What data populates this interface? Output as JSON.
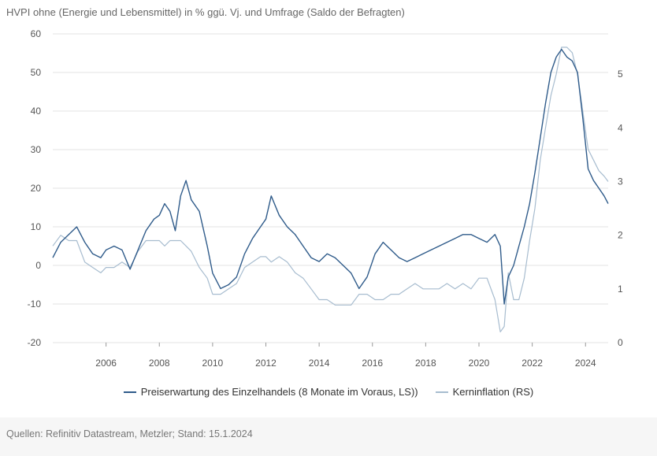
{
  "chart_data": {
    "type": "line",
    "title": "HVPI ohne (Energie und Lebensmittel) in % ggü. Vj. und Umfrage (Saldo der Befragten)",
    "x_ticks": [
      "2006",
      "2008",
      "2010",
      "2012",
      "2014",
      "2016",
      "2018",
      "2020",
      "2022",
      "2024"
    ],
    "x_tick_values": [
      2006,
      2008,
      2010,
      2012,
      2014,
      2016,
      2018,
      2020,
      2022,
      2024
    ],
    "xlim": [
      2004.0,
      2024.85
    ],
    "left_axis": {
      "ylim": [
        -20,
        60
      ],
      "ticks": [
        "60",
        "50",
        "40",
        "30",
        "20",
        "10",
        "0",
        "-10",
        "-20"
      ],
      "tick_values": [
        60,
        50,
        40,
        30,
        20,
        10,
        0,
        -10,
        -20
      ]
    },
    "right_axis": {
      "ylim": [
        0,
        5.75
      ],
      "ticks": [
        "5",
        "4",
        "3",
        "2",
        "1",
        "0"
      ],
      "tick_values": [
        5,
        4,
        3,
        2,
        1,
        0
      ]
    },
    "grid": true,
    "series": [
      {
        "name": "Preiserwartung des Einzelhandels (8 Monate im Voraus, LS))",
        "axis": "left",
        "color": "#2f5b8a",
        "x": [
          2004.0,
          2004.3,
          2004.6,
          2004.9,
          2005.2,
          2005.5,
          2005.8,
          2006.0,
          2006.3,
          2006.6,
          2006.9,
          2007.2,
          2007.5,
          2007.8,
          2008.0,
          2008.2,
          2008.4,
          2008.6,
          2008.8,
          2009.0,
          2009.2,
          2009.5,
          2009.8,
          2010.0,
          2010.3,
          2010.6,
          2010.9,
          2011.2,
          2011.5,
          2011.8,
          2012.0,
          2012.2,
          2012.5,
          2012.8,
          2013.1,
          2013.4,
          2013.7,
          2014.0,
          2014.3,
          2014.6,
          2014.9,
          2015.2,
          2015.5,
          2015.8,
          2016.1,
          2016.4,
          2016.7,
          2017.0,
          2017.3,
          2017.6,
          2017.9,
          2018.2,
          2018.5,
          2018.8,
          2019.1,
          2019.4,
          2019.7,
          2020.0,
          2020.3,
          2020.6,
          2020.8,
          2020.95,
          2021.1,
          2021.3,
          2021.5,
          2021.7,
          2021.9,
          2022.1,
          2022.3,
          2022.5,
          2022.7,
          2022.9,
          2023.1,
          2023.3,
          2023.5,
          2023.7,
          2023.9,
          2024.1,
          2024.3,
          2024.5,
          2024.7,
          2024.85
        ],
        "values": [
          2,
          6,
          8,
          10,
          6,
          3,
          2,
          4,
          5,
          4,
          -1,
          4,
          9,
          12,
          13,
          16,
          14,
          9,
          18,
          22,
          17,
          14,
          5,
          -2,
          -6,
          -5,
          -3,
          3,
          7,
          10,
          12,
          18,
          13,
          10,
          8,
          5,
          2,
          1,
          3,
          2,
          0,
          -2,
          -6,
          -3,
          3,
          6,
          4,
          2,
          1,
          2,
          3,
          4,
          5,
          6,
          7,
          8,
          8,
          7,
          6,
          8,
          5,
          -10,
          -3,
          0,
          5,
          10,
          16,
          24,
          33,
          42,
          50,
          54,
          56,
          54,
          53,
          50,
          38,
          25,
          22,
          20,
          18,
          16
        ]
      },
      {
        "name": "Kerninflation (RS)",
        "axis": "right",
        "color": "#a7bccf",
        "x": [
          2004.0,
          2004.3,
          2004.6,
          2004.9,
          2005.2,
          2005.5,
          2005.8,
          2006.0,
          2006.3,
          2006.6,
          2006.9,
          2007.2,
          2007.5,
          2007.8,
          2008.0,
          2008.2,
          2008.4,
          2008.6,
          2008.8,
          2009.0,
          2009.2,
          2009.5,
          2009.8,
          2010.0,
          2010.3,
          2010.6,
          2010.9,
          2011.2,
          2011.5,
          2011.8,
          2012.0,
          2012.2,
          2012.5,
          2012.8,
          2013.1,
          2013.4,
          2013.7,
          2014.0,
          2014.3,
          2014.6,
          2014.9,
          2015.2,
          2015.5,
          2015.8,
          2016.1,
          2016.4,
          2016.7,
          2017.0,
          2017.3,
          2017.6,
          2017.9,
          2018.2,
          2018.5,
          2018.8,
          2019.1,
          2019.4,
          2019.7,
          2020.0,
          2020.3,
          2020.6,
          2020.8,
          2020.95,
          2021.1,
          2021.3,
          2021.5,
          2021.7,
          2021.9,
          2022.1,
          2022.3,
          2022.5,
          2022.7,
          2022.9,
          2023.1,
          2023.3,
          2023.5,
          2023.7,
          2023.9,
          2024.1,
          2024.3,
          2024.5,
          2024.7,
          2024.85
        ],
        "values": [
          1.8,
          2.0,
          1.9,
          1.9,
          1.5,
          1.4,
          1.3,
          1.4,
          1.4,
          1.5,
          1.4,
          1.7,
          1.9,
          1.9,
          1.9,
          1.8,
          1.9,
          1.9,
          1.9,
          1.8,
          1.7,
          1.4,
          1.2,
          0.9,
          0.9,
          1.0,
          1.1,
          1.4,
          1.5,
          1.6,
          1.6,
          1.5,
          1.6,
          1.5,
          1.3,
          1.2,
          1.0,
          0.8,
          0.8,
          0.7,
          0.7,
          0.7,
          0.9,
          0.9,
          0.8,
          0.8,
          0.9,
          0.9,
          1.0,
          1.1,
          1.0,
          1.0,
          1.0,
          1.1,
          1.0,
          1.1,
          1.0,
          1.2,
          1.2,
          0.8,
          0.2,
          0.3,
          1.3,
          0.8,
          0.8,
          1.2,
          1.9,
          2.5,
          3.4,
          4.0,
          4.6,
          5.0,
          5.5,
          5.5,
          5.4,
          5.0,
          4.3,
          3.6,
          3.4,
          3.2,
          3.1,
          3.0
        ]
      }
    ],
    "xlabel": "",
    "ylabel": ""
  },
  "source": "Quellen: Refinitiv Datastream, Metzler; Stand: 15.1.2024"
}
